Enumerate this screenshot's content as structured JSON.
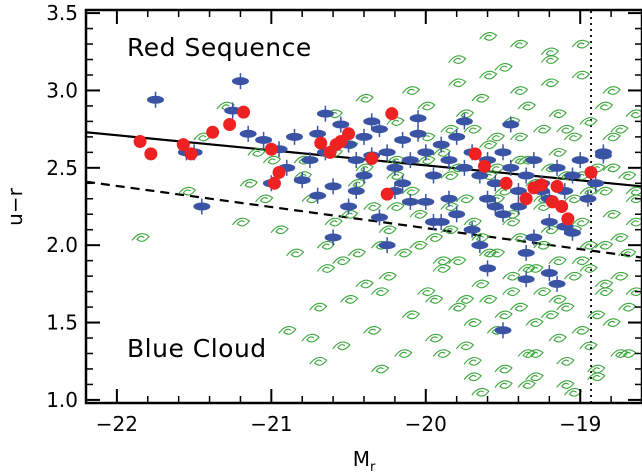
{
  "chart_data": {
    "type": "scatter",
    "title": "",
    "xlabel": "M",
    "xlabel_sub": "r",
    "ylabel": "u−r",
    "xlim": [
      -22.2,
      -18.6
    ],
    "ylim": [
      0.98,
      3.52
    ],
    "x_ticks": [
      -22,
      -21,
      -20,
      -19
    ],
    "x_tick_labels": [
      "−22",
      "−21",
      "−20",
      "−19"
    ],
    "y_ticks": [
      1.0,
      1.5,
      2.0,
      2.5,
      3.0,
      3.5
    ],
    "y_tick_labels": [
      "1.0",
      "1.5",
      "2.0",
      "2.5",
      "3.0",
      "3.5"
    ],
    "grid": false,
    "annotations": [
      {
        "text": "Red Sequence",
        "x": -21.85,
        "y": 3.24
      },
      {
        "text": "Blue Cloud",
        "x": -21.85,
        "y": 1.27
      }
    ],
    "reference_lines": [
      {
        "style": "solid",
        "points": [
          [
            -22.2,
            2.73
          ],
          [
            -18.6,
            2.38
          ]
        ]
      },
      {
        "style": "dashed",
        "points": [
          [
            -22.2,
            2.41
          ],
          [
            -18.6,
            1.92
          ]
        ]
      },
      {
        "style": "dotted",
        "points": [
          [
            -18.93,
            0.98
          ],
          [
            -18.93,
            3.52
          ]
        ]
      }
    ],
    "colors": {
      "spiral": "#3aa63a",
      "elliptical": "#3a53a4",
      "red": "#ee2222"
    },
    "series": [
      {
        "marker": "spiral",
        "x": [
          -21.85,
          -21.45,
          -21.0,
          -20.8,
          -20.75,
          -20.6,
          -20.5,
          -20.45,
          -20.35,
          -20.3,
          -20.2,
          -20.1,
          -20.05,
          -19.95,
          -19.9,
          -19.85,
          -19.75,
          -19.7,
          -19.6,
          -19.55,
          -19.5,
          -19.45,
          -19.4,
          -19.35,
          -19.3,
          -19.25,
          -19.2,
          -19.15,
          -19.1,
          -19.05,
          -19.0,
          -18.95,
          -18.9,
          -18.85,
          -18.8,
          -18.75,
          -18.7,
          -18.65,
          -21.3,
          -21.1,
          -20.95,
          -20.85,
          -20.65,
          -20.55,
          -20.4,
          -20.25,
          -20.15,
          -20.0,
          -19.9,
          -19.8,
          -19.65,
          -19.55,
          -19.45,
          -19.35,
          -19.25,
          -19.15,
          -19.05,
          -18.95,
          -18.85,
          -18.75,
          -18.65,
          -20.7,
          -20.5,
          -20.3,
          -20.1,
          -19.95,
          -19.8,
          -19.7,
          -19.6,
          -19.5,
          -19.4,
          -19.3,
          -19.2,
          -19.1,
          -19.0,
          -18.9,
          -18.8,
          -18.7,
          -20.6,
          -20.4,
          -20.2,
          -20.0,
          -19.85,
          -19.75,
          -19.65,
          -19.55,
          -19.45,
          -19.35,
          -19.25,
          -19.15,
          -19.05,
          -18.95,
          -18.85,
          -18.75,
          -18.65,
          -20.9,
          -20.75,
          -20.55,
          -20.35,
          -20.15,
          -19.95,
          -19.75,
          -19.55,
          -19.35,
          -19.15,
          -18.95,
          -18.75,
          -21.2,
          -21.05,
          -20.65,
          -20.45,
          -20.25,
          -20.05,
          -19.85,
          -19.65,
          -19.45,
          -19.25,
          -19.05,
          -18.85,
          -18.65,
          -21.55,
          -21.15,
          -20.8,
          -20.6,
          -20.4,
          -20.2,
          -20.0,
          -19.8,
          -19.6,
          -19.4,
          -19.2,
          -19.0,
          -18.8,
          -20.7,
          -20.3,
          -19.9,
          -19.7,
          -19.5,
          -19.3,
          -19.1,
          -18.9,
          -18.7,
          -20.1,
          -19.8,
          -19.6,
          -19.4,
          -19.2,
          -19.0,
          -18.8,
          -19.7,
          -19.5,
          -19.3,
          -19.1,
          -18.9,
          -19.6,
          -19.4,
          -19.2,
          -19.0,
          -19.65,
          -19.35,
          -19.05,
          -19.8,
          -19.5,
          -19.2,
          -19.9,
          -19.6,
          -19.3,
          -19.0,
          -18.7,
          -20.5,
          -20.2,
          -19.85,
          -19.55,
          -19.25,
          -18.95,
          -18.65,
          -19.75,
          -19.45,
          -19.15,
          -18.85,
          -20.0,
          -19.7,
          -19.4,
          -19.1,
          -18.8
        ],
        "y": [
          2.05,
          2.7,
          2.55,
          2.45,
          2.3,
          2.15,
          2.65,
          2.4,
          2.25,
          2.0,
          2.55,
          2.35,
          2.2,
          2.05,
          2.6,
          2.45,
          2.3,
          2.15,
          2.65,
          2.5,
          2.35,
          2.2,
          2.05,
          2.55,
          2.4,
          2.25,
          2.1,
          2.6,
          2.45,
          2.3,
          2.15,
          2.0,
          2.5,
          2.35,
          2.2,
          2.05,
          2.45,
          2.3,
          2.9,
          2.6,
          2.1,
          1.95,
          1.85,
          1.9,
          1.75,
          1.8,
          1.95,
          1.7,
          1.85,
          1.9,
          1.75,
          1.95,
          1.8,
          1.85,
          1.7,
          1.9,
          1.8,
          1.85,
          1.75,
          1.8,
          1.7,
          1.6,
          1.65,
          1.7,
          1.55,
          1.65,
          1.6,
          1.5,
          1.65,
          1.55,
          1.6,
          1.5,
          1.55,
          1.6,
          1.45,
          1.55,
          1.5,
          1.6,
          2.85,
          2.95,
          2.8,
          2.9,
          2.75,
          2.85,
          2.95,
          2.7,
          2.8,
          2.9,
          2.75,
          2.85,
          2.7,
          2.8,
          2.9,
          2.75,
          2.85,
          1.45,
          1.4,
          1.35,
          1.45,
          1.3,
          1.4,
          1.35,
          1.45,
          1.3,
          1.4,
          1.35,
          1.3,
          2.15,
          2.3,
          2.0,
          1.95,
          2.1,
          2.0,
          2.1,
          2.05,
          2.15,
          2.0,
          2.1,
          2.0,
          2.15,
          2.35,
          2.4,
          2.55,
          2.6,
          2.5,
          2.45,
          2.55,
          2.5,
          2.45,
          2.55,
          2.5,
          2.45,
          2.5,
          1.25,
          1.2,
          1.3,
          1.25,
          1.2,
          1.3,
          1.25,
          1.2,
          1.3,
          3.0,
          3.05,
          3.1,
          3.0,
          3.05,
          3.1,
          3.0,
          1.15,
          1.1,
          1.15,
          1.1,
          1.15,
          3.35,
          3.3,
          3.25,
          3.3,
          1.05,
          1.1,
          1.05,
          3.2,
          3.15,
          3.2,
          1.9,
          1.95,
          1.85,
          1.9,
          1.95,
          2.2,
          2.25,
          2.25,
          2.3,
          2.3,
          2.35,
          2.35,
          1.65,
          1.7,
          1.65,
          1.7,
          2.7,
          2.75,
          2.7,
          2.75,
          2.7
        ]
      },
      {
        "marker": "elliptical",
        "x": [
          -21.75,
          -21.55,
          -21.45,
          -21.25,
          -21.2,
          -21.15,
          -21.05,
          -20.95,
          -20.85,
          -20.75,
          -20.7,
          -20.65,
          -20.55,
          -20.5,
          -20.45,
          -20.4,
          -20.35,
          -20.3,
          -20.25,
          -20.2,
          -20.15,
          -20.1,
          -20.05,
          -20.0,
          -19.95,
          -19.9,
          -19.85,
          -19.8,
          -19.75,
          -19.7,
          -19.65,
          -19.6,
          -19.55,
          -19.5,
          -19.45,
          -19.4,
          -19.35,
          -19.3,
          -19.25,
          -19.2,
          -19.15,
          -19.1,
          -19.05,
          -19.0,
          -18.95,
          -18.9,
          -18.85,
          -20.9,
          -20.8,
          -20.6,
          -20.4,
          -20.2,
          -20.0,
          -19.8,
          -19.6,
          -19.4,
          -19.2,
          -21.0,
          -20.7,
          -20.5,
          -20.3,
          -20.1,
          -19.9,
          -19.7,
          -19.5,
          -19.3,
          -19.1,
          -20.6,
          -20.25,
          -19.95,
          -19.65,
          -19.35,
          -19.05,
          -20.45,
          -20.15,
          -19.85,
          -19.55,
          -19.25,
          -19.15,
          -19.6,
          -19.35,
          -19.2,
          -19.5,
          -21.5,
          -20.65,
          -20.35,
          -20.05,
          -19.75,
          -19.45,
          -18.85
        ],
        "y": [
          2.94,
          2.6,
          2.25,
          2.87,
          3.06,
          2.72,
          2.68,
          2.62,
          2.7,
          2.55,
          2.72,
          2.6,
          2.78,
          2.65,
          2.55,
          2.7,
          2.58,
          2.75,
          2.6,
          2.5,
          2.68,
          2.55,
          2.72,
          2.6,
          2.45,
          2.65,
          2.55,
          2.7,
          2.5,
          2.6,
          2.45,
          2.55,
          2.4,
          2.6,
          2.5,
          2.35,
          2.45,
          2.55,
          2.4,
          2.3,
          2.5,
          2.35,
          2.45,
          2.55,
          2.3,
          2.4,
          2.58,
          2.5,
          2.42,
          2.38,
          2.45,
          2.35,
          2.28,
          2.2,
          2.3,
          2.25,
          2.15,
          2.4,
          2.32,
          2.25,
          2.18,
          2.28,
          2.15,
          2.1,
          2.2,
          2.05,
          2.12,
          2.05,
          2.0,
          2.15,
          2.0,
          1.95,
          2.08,
          2.35,
          2.4,
          2.3,
          2.25,
          2.35,
          1.75,
          1.85,
          1.78,
          1.82,
          1.45,
          2.6,
          2.85,
          2.8,
          2.82,
          2.8,
          2.78,
          2.6
        ]
      },
      {
        "marker": "red",
        "x": [
          -21.85,
          -21.78,
          -21.57,
          -21.52,
          -21.38,
          -21.27,
          -21.18,
          -21.0,
          -20.98,
          -20.95,
          -20.68,
          -20.62,
          -20.58,
          -20.55,
          -20.5,
          -20.35,
          -20.25,
          -20.22,
          -19.68,
          -19.62,
          -19.48,
          -19.35,
          -19.3,
          -19.25,
          -19.18,
          -19.15,
          -19.12,
          -19.08,
          -18.93
        ],
        "y": [
          2.67,
          2.59,
          2.65,
          2.59,
          2.73,
          2.78,
          2.86,
          2.62,
          2.4,
          2.47,
          2.66,
          2.6,
          2.65,
          2.67,
          2.72,
          2.56,
          2.33,
          2.85,
          2.59,
          2.51,
          2.4,
          2.3,
          2.37,
          2.39,
          2.28,
          2.38,
          2.25,
          2.17,
          2.47
        ]
      }
    ]
  }
}
